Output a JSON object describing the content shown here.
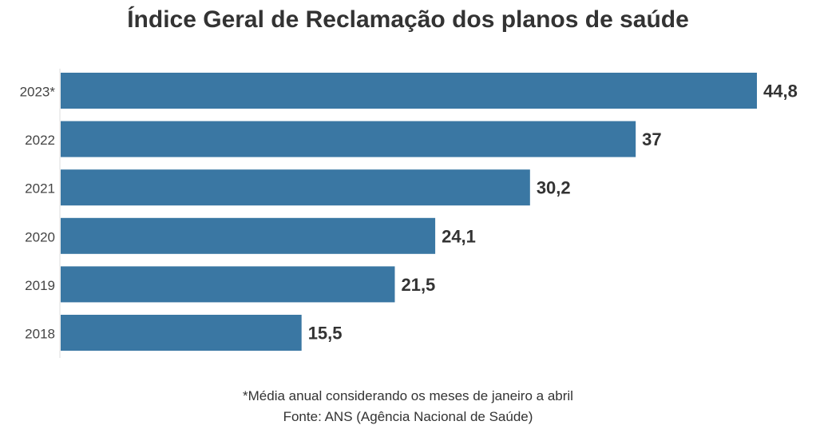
{
  "chart_data": {
    "type": "bar",
    "orientation": "horizontal",
    "title": "Índice Geral de Reclamação dos planos de saúde",
    "categories": [
      "2023*",
      "2022",
      "2021",
      "2020",
      "2019",
      "2018"
    ],
    "values": [
      44.8,
      37,
      30.2,
      24.1,
      21.5,
      15.5
    ],
    "data_labels": [
      "44,8",
      "37",
      "30,2",
      "24,1",
      "21,5",
      "15,5"
    ],
    "xlim": [
      0,
      44.8
    ],
    "grid": false,
    "bar_color": "#3a77a3"
  },
  "footnotes": {
    "note": "*Média anual considerando os meses de janeiro a abril",
    "source": "Fonte: ANS (Agência Nacional de Saúde)"
  }
}
